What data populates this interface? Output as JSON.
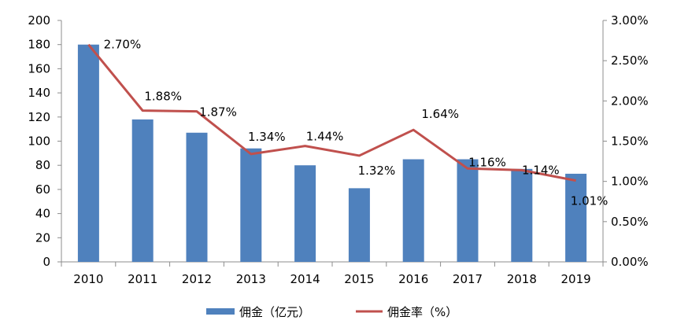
{
  "chart_data": {
    "type": "bar",
    "categories": [
      "2010",
      "2011",
      "2012",
      "2013",
      "2014",
      "2015",
      "2016",
      "2017",
      "2018",
      "2019"
    ],
    "series": [
      {
        "name": "佣金（亿元）",
        "type": "bar",
        "axis": "left",
        "color": "#4f81bd",
        "values": [
          180,
          118,
          107,
          94,
          80,
          61,
          85,
          85,
          77,
          73
        ]
      },
      {
        "name": "佣金率（%）",
        "type": "line",
        "axis": "right",
        "color": "#c0504d",
        "values": [
          2.7,
          1.88,
          1.87,
          1.34,
          1.44,
          1.32,
          1.64,
          1.16,
          1.14,
          1.01
        ],
        "labels": [
          "2.70%",
          "1.88%",
          "1.87%",
          "1.34%",
          "1.44%",
          "1.32%",
          "1.64%",
          "1.16%",
          "1.14%",
          "1.01%"
        ]
      }
    ],
    "y_left": {
      "min": 0,
      "max": 200,
      "step": 20,
      "ticks": [
        "0",
        "20",
        "40",
        "60",
        "80",
        "100",
        "120",
        "140",
        "160",
        "180",
        "200"
      ]
    },
    "y_right": {
      "min": 0,
      "max": 3,
      "step": 0.5,
      "ticks": [
        "0.00%",
        "0.50%",
        "1.00%",
        "1.50%",
        "2.00%",
        "2.50%",
        "3.00%"
      ]
    },
    "grid": false,
    "legend_position": "bottom"
  }
}
